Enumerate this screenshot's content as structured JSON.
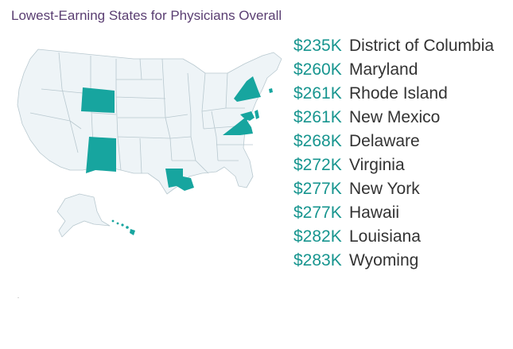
{
  "title": "Lowest-Earning States for Physicians Overall",
  "colors": {
    "title": "#5a3e72",
    "value": "#17958f",
    "highlight": "#17a59f",
    "base_state": "#eef4f7",
    "state_border": "#b8c8cf",
    "label": "#333333"
  },
  "chart_data": {
    "type": "table",
    "title": "Lowest-Earning States for Physicians Overall",
    "rows": [
      {
        "value": "$235K",
        "state": "District of Columbia"
      },
      {
        "value": "$260K",
        "state": "Maryland"
      },
      {
        "value": "$261K",
        "state": "Rhode Island"
      },
      {
        "value": "$261K",
        "state": "New Mexico"
      },
      {
        "value": "$268K",
        "state": "Delaware"
      },
      {
        "value": "$272K",
        "state": "Virginia"
      },
      {
        "value": "$277K",
        "state": "New York"
      },
      {
        "value": "$277K",
        "state": "Hawaii"
      },
      {
        "value": "$282K",
        "state": "Louisiana"
      },
      {
        "value": "$283K",
        "state": "Wyoming"
      }
    ],
    "highlighted_states": [
      "District of Columbia",
      "Maryland",
      "Rhode Island",
      "New Mexico",
      "Delaware",
      "Virginia",
      "New York",
      "Hawaii",
      "Louisiana",
      "Wyoming"
    ]
  }
}
